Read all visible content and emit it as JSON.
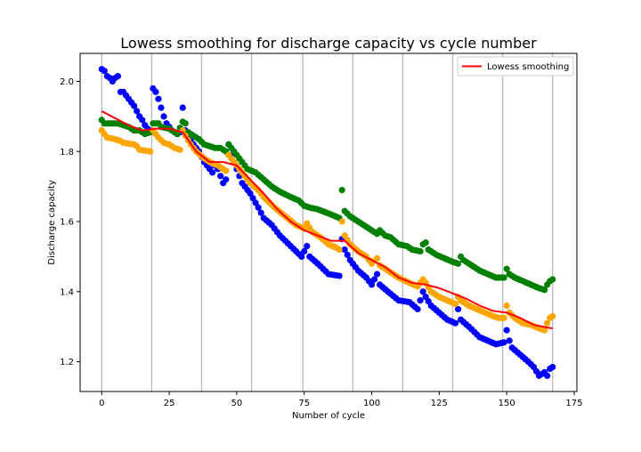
{
  "chart_data": {
    "type": "scatter",
    "title": "Lowess smoothing for discharge capacity vs cycle number",
    "xlabel": "Number of cycle",
    "ylabel": "Discharge capacity",
    "xlim": [
      -8,
      176
    ],
    "ylim": [
      1.115,
      2.08
    ],
    "xticks": [
      0,
      25,
      50,
      75,
      100,
      125,
      150,
      175
    ],
    "yticks": [
      1.2,
      1.4,
      1.6,
      1.8,
      2.0
    ],
    "xtick_labels": [
      "0",
      "25",
      "50",
      "75",
      "100",
      "125",
      "150",
      "175"
    ],
    "ytick_labels": [
      "1.2",
      "1.4",
      "1.6",
      "1.8",
      "2.0"
    ],
    "vlines": [
      0,
      18.5,
      37,
      55.5,
      74.5,
      93,
      111.5,
      130,
      148.5,
      167
    ],
    "legend": {
      "placement": "top-right",
      "entries": [
        "Lowess smoothing"
      ]
    },
    "colors": {
      "blue": "#0000ff",
      "green": "#008000",
      "orange": "#ffa500",
      "lowess": "#ff0000",
      "vline": "#c0c0c0"
    },
    "series": [
      {
        "color": "blue",
        "anchors": [
          [
            0,
            2.035
          ],
          [
            1,
            2.03
          ],
          [
            2,
            2.015
          ],
          [
            3,
            2.01
          ],
          [
            4,
            2.0
          ],
          [
            5,
            2.01
          ],
          [
            6,
            2.015
          ],
          [
            7,
            1.97
          ],
          [
            8,
            1.97
          ],
          [
            9,
            1.96
          ],
          [
            10,
            1.95
          ],
          [
            11,
            1.94
          ],
          [
            12,
            1.93
          ],
          [
            13,
            1.915
          ],
          [
            14,
            1.9
          ],
          [
            15,
            1.89
          ],
          [
            16,
            1.875
          ],
          [
            17,
            1.865
          ],
          [
            18,
            1.86
          ],
          [
            19,
            1.98
          ],
          [
            20,
            1.97
          ],
          [
            21,
            1.95
          ],
          [
            22,
            1.925
          ],
          [
            23,
            1.9
          ],
          [
            24,
            1.88
          ],
          [
            25,
            1.87
          ],
          [
            26,
            1.86
          ],
          [
            27,
            1.855
          ],
          [
            28,
            1.85
          ],
          [
            29,
            1.855
          ],
          [
            30,
            1.925
          ],
          [
            31,
            1.86
          ],
          [
            32,
            1.845
          ],
          [
            33,
            1.83
          ],
          [
            34,
            1.82
          ],
          [
            35,
            1.81
          ],
          [
            36,
            1.8
          ],
          [
            37,
            1.785
          ],
          [
            38,
            1.77
          ],
          [
            39,
            1.76
          ],
          [
            40,
            1.75
          ],
          [
            41,
            1.74
          ],
          [
            42,
            1.76
          ],
          [
            43,
            1.75
          ],
          [
            44,
            1.73
          ],
          [
            45,
            1.71
          ],
          [
            46,
            1.72
          ],
          [
            47,
            1.82
          ],
          [
            48,
            1.79
          ],
          [
            50,
            1.75
          ],
          [
            52,
            1.71
          ],
          [
            55,
            1.68
          ],
          [
            58,
            1.64
          ],
          [
            60,
            1.61
          ],
          [
            63,
            1.59
          ],
          [
            66,
            1.56
          ],
          [
            70,
            1.53
          ],
          [
            74,
            1.5
          ],
          [
            76,
            1.53
          ],
          [
            77,
            1.5
          ],
          [
            80,
            1.48
          ],
          [
            84,
            1.45
          ],
          [
            88,
            1.445
          ],
          [
            89,
            1.55
          ],
          [
            90,
            1.52
          ],
          [
            92,
            1.49
          ],
          [
            95,
            1.46
          ],
          [
            98,
            1.44
          ],
          [
            100,
            1.42
          ],
          [
            102,
            1.45
          ],
          [
            103,
            1.42
          ],
          [
            106,
            1.4
          ],
          [
            110,
            1.375
          ],
          [
            114,
            1.37
          ],
          [
            117,
            1.35
          ],
          [
            119,
            1.4
          ],
          [
            120,
            1.385
          ],
          [
            122,
            1.36
          ],
          [
            125,
            1.34
          ],
          [
            128,
            1.32
          ],
          [
            131,
            1.31
          ],
          [
            132,
            1.35
          ],
          [
            133,
            1.32
          ],
          [
            136,
            1.3
          ],
          [
            138,
            1.285
          ],
          [
            140,
            1.27
          ],
          [
            143,
            1.26
          ],
          [
            146,
            1.25
          ],
          [
            149,
            1.255
          ],
          [
            150,
            1.29
          ],
          [
            151,
            1.26
          ],
          [
            152,
            1.24
          ],
          [
            155,
            1.22
          ],
          [
            158,
            1.2
          ],
          [
            160,
            1.185
          ],
          [
            162,
            1.16
          ],
          [
            163,
            1.165
          ],
          [
            164,
            1.17
          ],
          [
            165,
            1.16
          ],
          [
            166,
            1.18
          ],
          [
            167,
            1.185
          ]
        ]
      },
      {
        "color": "green",
        "anchors": [
          [
            0,
            1.89
          ],
          [
            1,
            1.88
          ],
          [
            6,
            1.88
          ],
          [
            10,
            1.87
          ],
          [
            12,
            1.86
          ],
          [
            14,
            1.86
          ],
          [
            16,
            1.85
          ],
          [
            18,
            1.855
          ],
          [
            19,
            1.88
          ],
          [
            21,
            1.88
          ],
          [
            22,
            1.87
          ],
          [
            25,
            1.865
          ],
          [
            28,
            1.85
          ],
          [
            30,
            1.885
          ],
          [
            31,
            1.88
          ],
          [
            32,
            1.855
          ],
          [
            34,
            1.845
          ],
          [
            36,
            1.835
          ],
          [
            38,
            1.82
          ],
          [
            40,
            1.815
          ],
          [
            42,
            1.81
          ],
          [
            44,
            1.81
          ],
          [
            46,
            1.8
          ],
          [
            47,
            1.82
          ],
          [
            48,
            1.81
          ],
          [
            50,
            1.79
          ],
          [
            52,
            1.77
          ],
          [
            54,
            1.75
          ],
          [
            57,
            1.74
          ],
          [
            60,
            1.72
          ],
          [
            63,
            1.7
          ],
          [
            66,
            1.685
          ],
          [
            70,
            1.67
          ],
          [
            73,
            1.66
          ],
          [
            75,
            1.645
          ],
          [
            77,
            1.64
          ],
          [
            80,
            1.635
          ],
          [
            85,
            1.62
          ],
          [
            88,
            1.61
          ],
          [
            89,
            1.69
          ],
          [
            90,
            1.63
          ],
          [
            92,
            1.615
          ],
          [
            95,
            1.6
          ],
          [
            98,
            1.585
          ],
          [
            100,
            1.575
          ],
          [
            102,
            1.565
          ],
          [
            103,
            1.575
          ],
          [
            105,
            1.56
          ],
          [
            107,
            1.555
          ],
          [
            110,
            1.535
          ],
          [
            113,
            1.53
          ],
          [
            115,
            1.52
          ],
          [
            118,
            1.515
          ],
          [
            119,
            1.535
          ],
          [
            120,
            1.54
          ],
          [
            121,
            1.52
          ],
          [
            124,
            1.505
          ],
          [
            127,
            1.495
          ],
          [
            130,
            1.485
          ],
          [
            132,
            1.48
          ],
          [
            133,
            1.5
          ],
          [
            134,
            1.49
          ],
          [
            137,
            1.475
          ],
          [
            140,
            1.46
          ],
          [
            143,
            1.45
          ],
          [
            146,
            1.44
          ],
          [
            149,
            1.44
          ],
          [
            150,
            1.465
          ],
          [
            151,
            1.45
          ],
          [
            153,
            1.44
          ],
          [
            156,
            1.43
          ],
          [
            159,
            1.42
          ],
          [
            162,
            1.41
          ],
          [
            164,
            1.405
          ],
          [
            165,
            1.42
          ],
          [
            166,
            1.43
          ],
          [
            167,
            1.435
          ]
        ]
      },
      {
        "color": "orange",
        "anchors": [
          [
            0,
            1.86
          ],
          [
            1,
            1.85
          ],
          [
            2,
            1.84
          ],
          [
            5,
            1.835
          ],
          [
            7,
            1.83
          ],
          [
            8,
            1.825
          ],
          [
            12,
            1.82
          ],
          [
            13,
            1.815
          ],
          [
            14,
            1.805
          ],
          [
            18,
            1.8
          ],
          [
            19,
            1.86
          ],
          [
            20,
            1.85
          ],
          [
            21,
            1.84
          ],
          [
            23,
            1.825
          ],
          [
            25,
            1.82
          ],
          [
            27,
            1.81
          ],
          [
            29,
            1.805
          ],
          [
            30,
            1.86
          ],
          [
            31,
            1.845
          ],
          [
            33,
            1.82
          ],
          [
            35,
            1.8
          ],
          [
            38,
            1.78
          ],
          [
            40,
            1.77
          ],
          [
            43,
            1.76
          ],
          [
            46,
            1.745
          ],
          [
            47,
            1.79
          ],
          [
            49,
            1.77
          ],
          [
            52,
            1.74
          ],
          [
            55,
            1.71
          ],
          [
            58,
            1.69
          ],
          [
            60,
            1.67
          ],
          [
            64,
            1.64
          ],
          [
            68,
            1.615
          ],
          [
            72,
            1.59
          ],
          [
            75,
            1.58
          ],
          [
            76,
            1.595
          ],
          [
            78,
            1.57
          ],
          [
            81,
            1.555
          ],
          [
            84,
            1.535
          ],
          [
            87,
            1.525
          ],
          [
            88,
            1.52
          ],
          [
            89,
            1.6
          ],
          [
            90,
            1.56
          ],
          [
            92,
            1.535
          ],
          [
            95,
            1.515
          ],
          [
            98,
            1.5
          ],
          [
            100,
            1.48
          ],
          [
            102,
            1.495
          ],
          [
            103,
            1.475
          ],
          [
            106,
            1.46
          ],
          [
            110,
            1.44
          ],
          [
            114,
            1.425
          ],
          [
            117,
            1.415
          ],
          [
            119,
            1.435
          ],
          [
            120,
            1.425
          ],
          [
            122,
            1.4
          ],
          [
            125,
            1.385
          ],
          [
            128,
            1.375
          ],
          [
            131,
            1.365
          ],
          [
            132,
            1.385
          ],
          [
            133,
            1.375
          ],
          [
            136,
            1.36
          ],
          [
            139,
            1.35
          ],
          [
            142,
            1.34
          ],
          [
            145,
            1.33
          ],
          [
            147,
            1.325
          ],
          [
            149,
            1.325
          ],
          [
            150,
            1.36
          ],
          [
            151,
            1.34
          ],
          [
            153,
            1.325
          ],
          [
            156,
            1.31
          ],
          [
            159,
            1.305
          ],
          [
            162,
            1.295
          ],
          [
            164,
            1.29
          ],
          [
            165,
            1.31
          ],
          [
            166,
            1.325
          ],
          [
            167,
            1.33
          ]
        ]
      }
    ],
    "lowess": {
      "name": "Lowess smoothing",
      "x": [
        0,
        5,
        10,
        15,
        20,
        25,
        30,
        35,
        40,
        45,
        50,
        55,
        60,
        65,
        70,
        75,
        80,
        85,
        90,
        95,
        100,
        105,
        110,
        115,
        120,
        125,
        130,
        135,
        140,
        145,
        150,
        155,
        160,
        167
      ],
      "y": [
        1.915,
        1.895,
        1.875,
        1.86,
        1.865,
        1.865,
        1.855,
        1.8,
        1.77,
        1.77,
        1.76,
        1.72,
        1.68,
        1.635,
        1.6,
        1.575,
        1.56,
        1.545,
        1.545,
        1.51,
        1.49,
        1.47,
        1.44,
        1.425,
        1.42,
        1.41,
        1.395,
        1.38,
        1.36,
        1.345,
        1.34,
        1.325,
        1.305,
        1.295
      ]
    }
  }
}
